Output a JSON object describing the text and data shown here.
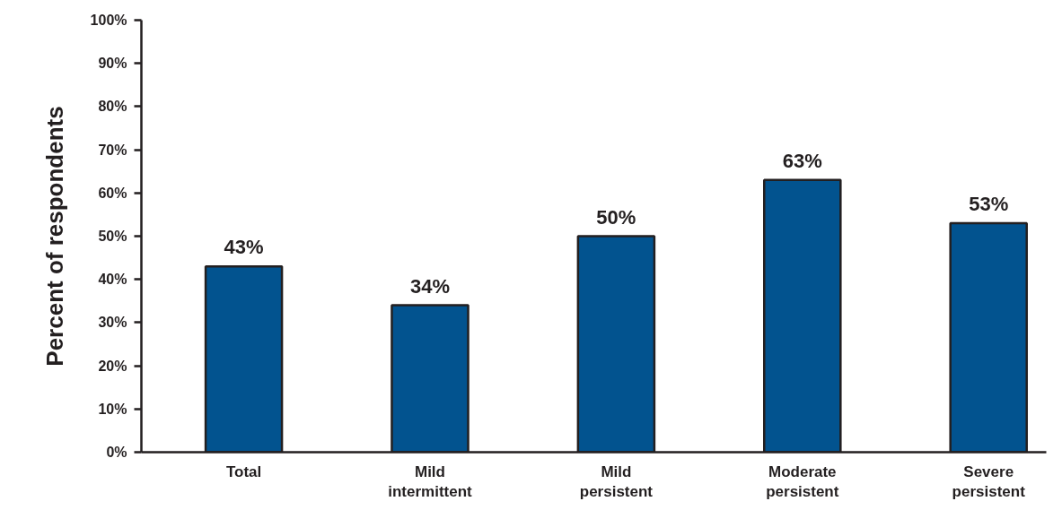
{
  "chart_data": {
    "type": "bar",
    "ylabel": "Percent of respondents",
    "categories": [
      "Total",
      "Mild intermittent",
      "Mild persistent",
      "Moderate persistent",
      "Severe persistent"
    ],
    "values": [
      43,
      34,
      50,
      63,
      53
    ],
    "value_labels": [
      "43%",
      "34%",
      "50%",
      "63%",
      "53%"
    ],
    "color": "#02538f",
    "ylim": [
      0,
      100
    ],
    "yticks": [
      {
        "value": 0,
        "label": "0%"
      },
      {
        "value": 10,
        "label": "10%"
      },
      {
        "value": 20,
        "label": "20%"
      },
      {
        "value": 30,
        "label": "30%"
      },
      {
        "value": 40,
        "label": "40%"
      },
      {
        "value": 50,
        "label": "50%"
      },
      {
        "value": 60,
        "label": "60%"
      },
      {
        "value": 70,
        "label": "70%"
      },
      {
        "value": 80,
        "label": "80%"
      },
      {
        "value": 90,
        "label": "90%"
      },
      {
        "value": 100,
        "label": "100%"
      }
    ],
    "grid": false
  }
}
